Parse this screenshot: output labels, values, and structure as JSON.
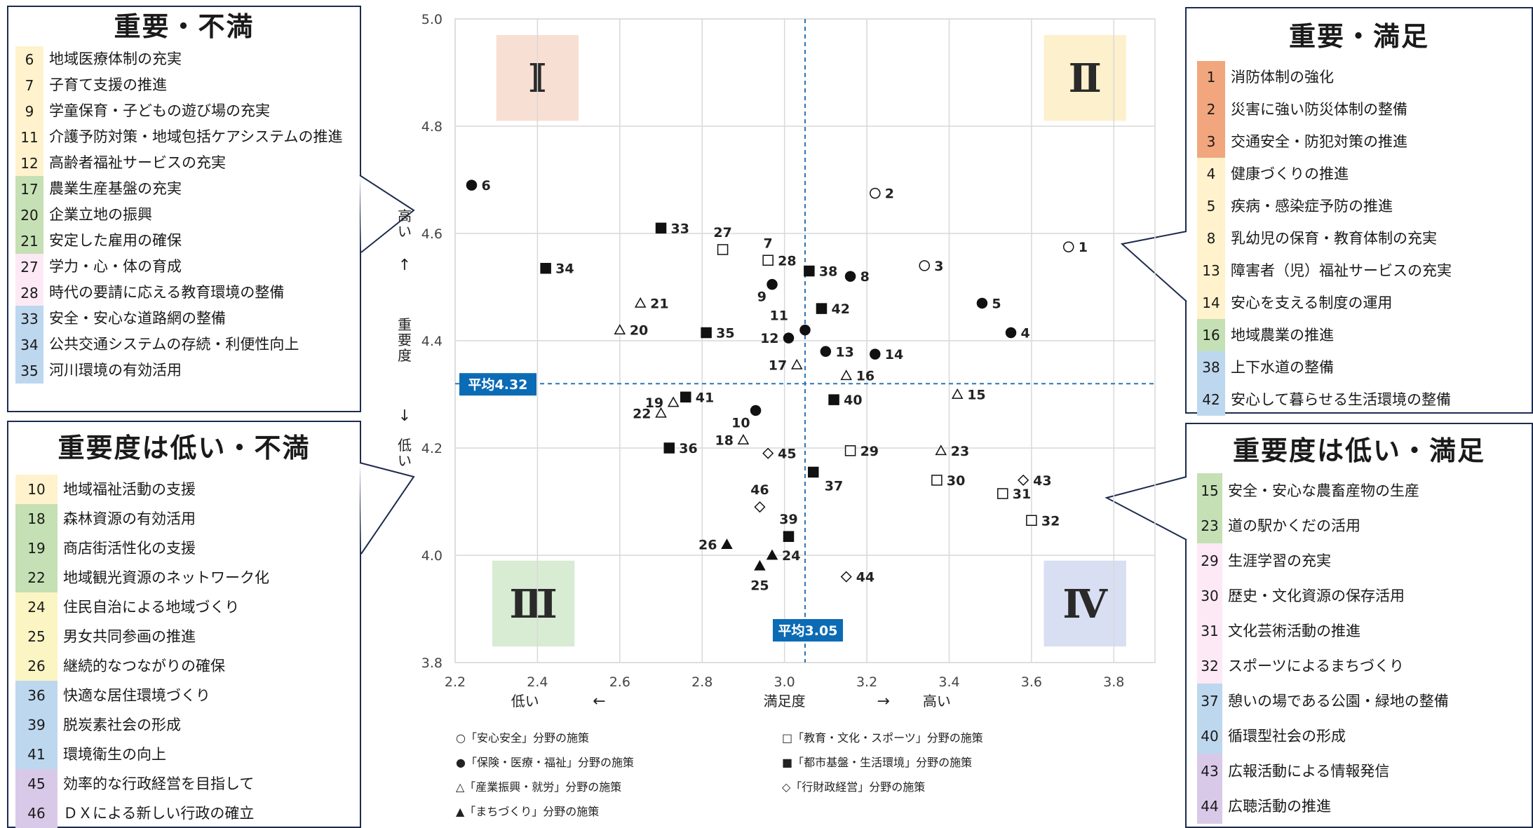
{
  "colors": {
    "q1": "#f8dfd3",
    "q2": "#fdf0cc",
    "q3": "#d8ebd3",
    "q4": "#d8dff2",
    "axis_line": "#2e75b6",
    "avg_box": "#0b6bb5",
    "panel_border": "#1d2b4f",
    "cat_safety_strong": "#f1a67d",
    "cat_health": "#fff2cc",
    "cat_industry": "#c5e0b4",
    "cat_education": "#fde9f5",
    "cat_urban": "#bdd7ee",
    "cat_admin": "#d9c9e8"
  },
  "panels": {
    "top_left": {
      "title": "重要・不満",
      "items": [
        {
          "num": "6",
          "label": "地域医療体制の充実",
          "color": "#fff2cc"
        },
        {
          "num": "7",
          "label": "子育て支援の推進",
          "color": "#fff2cc"
        },
        {
          "num": "9",
          "label": "学童保育・子どもの遊び場の充実",
          "color": "#fff2cc"
        },
        {
          "num": "11",
          "label": "介護予防対策・地域包括ケアシステムの推進",
          "color": "#fff2cc"
        },
        {
          "num": "12",
          "label": "高齢者福祉サービスの充実",
          "color": "#fff2cc"
        },
        {
          "num": "17",
          "label": "農業生産基盤の充実",
          "color": "#c5e0b4"
        },
        {
          "num": "20",
          "label": "企業立地の振興",
          "color": "#c5e0b4"
        },
        {
          "num": "21",
          "label": "安定した雇用の確保",
          "color": "#c5e0b4"
        },
        {
          "num": "27",
          "label": "学力・心・体の育成",
          "color": "#fde9f5"
        },
        {
          "num": "28",
          "label": "時代の要請に応える教育環境の整備",
          "color": "#fde9f5"
        },
        {
          "num": "33",
          "label": "安全・安心な道路網の整備",
          "color": "#bdd7ee"
        },
        {
          "num": "34",
          "label": "公共交通システムの存続・利便性向上",
          "color": "#bdd7ee"
        },
        {
          "num": "35",
          "label": "河川環境の有効活用",
          "color": "#bdd7ee"
        }
      ]
    },
    "bottom_left": {
      "title": "重要度は低い・不満",
      "items": [
        {
          "num": "10",
          "label": "地域福祉活動の支援",
          "color": "#fff2cc"
        },
        {
          "num": "18",
          "label": "森林資源の有効活用",
          "color": "#c5e0b4"
        },
        {
          "num": "19",
          "label": "商店街活性化の支援",
          "color": "#c5e0b4"
        },
        {
          "num": "22",
          "label": "地域観光資源のネットワーク化",
          "color": "#c5e0b4"
        },
        {
          "num": "24",
          "label": "住民自治による地域づくり",
          "color": "#fbf5c4"
        },
        {
          "num": "25",
          "label": "男女共同参画の推進",
          "color": "#fbf5c4"
        },
        {
          "num": "26",
          "label": "継続的なつながりの確保",
          "color": "#fbf5c4"
        },
        {
          "num": "36",
          "label": "快適な居住環境づくり",
          "color": "#bdd7ee"
        },
        {
          "num": "39",
          "label": "脱炭素社会の形成",
          "color": "#bdd7ee"
        },
        {
          "num": "41",
          "label": "環境衛生の向上",
          "color": "#bdd7ee"
        },
        {
          "num": "45",
          "label": "効率的な行政経営を目指して",
          "color": "#d9c9e8"
        },
        {
          "num": "46",
          "label": "ＤＸによる新しい行政の確立",
          "color": "#d9c9e8"
        }
      ]
    },
    "top_right": {
      "title": "重要・満足",
      "items": [
        {
          "num": "1",
          "label": "消防体制の強化",
          "color": "#f1a67d"
        },
        {
          "num": "2",
          "label": "災害に強い防災体制の整備",
          "color": "#f1a67d"
        },
        {
          "num": "3",
          "label": "交通安全・防犯対策の推進",
          "color": "#f1a67d"
        },
        {
          "num": "4",
          "label": "健康づくりの推進",
          "color": "#fff2cc"
        },
        {
          "num": "5",
          "label": "疾病・感染症予防の推進",
          "color": "#fff2cc"
        },
        {
          "num": "8",
          "label": "乳幼児の保育・教育体制の充実",
          "color": "#fff2cc"
        },
        {
          "num": "13",
          "label": "障害者（児）福祉サービスの充実",
          "color": "#fff2cc"
        },
        {
          "num": "14",
          "label": "安心を支える制度の運用",
          "color": "#fff2cc"
        },
        {
          "num": "16",
          "label": "地域農業の推進",
          "color": "#c5e0b4"
        },
        {
          "num": "38",
          "label": "上下水道の整備",
          "color": "#bdd7ee"
        },
        {
          "num": "42",
          "label": "安心して暮らせる生活環境の整備",
          "color": "#bdd7ee"
        }
      ]
    },
    "bottom_right": {
      "title": "重要度は低い・満足",
      "items": [
        {
          "num": "15",
          "label": "安全・安心な農畜産物の生産",
          "color": "#c5e0b4"
        },
        {
          "num": "23",
          "label": "道の駅かくだの活用",
          "color": "#c5e0b4"
        },
        {
          "num": "29",
          "label": "生涯学習の充実",
          "color": "#fde9f5"
        },
        {
          "num": "30",
          "label": "歴史・文化資源の保存活用",
          "color": "#fde9f5"
        },
        {
          "num": "31",
          "label": "文化芸術活動の推進",
          "color": "#fde9f5"
        },
        {
          "num": "32",
          "label": "スポーツによるまちづくり",
          "color": "#fde9f5"
        },
        {
          "num": "37",
          "label": "憩いの場である公園・緑地の整備",
          "color": "#bdd7ee"
        },
        {
          "num": "40",
          "label": "循環型社会の形成",
          "color": "#bdd7ee"
        },
        {
          "num": "43",
          "label": "広報活動による情報発信",
          "color": "#d9c9e8"
        },
        {
          "num": "44",
          "label": "広聴活動の推進",
          "color": "#d9c9e8"
        }
      ]
    }
  },
  "chart_data": {
    "type": "scatter",
    "xlim": [
      2.2,
      3.9
    ],
    "ylim": [
      3.8,
      5.0
    ],
    "xticks": [
      "2.2",
      "2.4",
      "2.6",
      "2.8",
      "3.0",
      "3.2",
      "3.4",
      "3.6",
      "3.8"
    ],
    "yticks": [
      "3.8",
      "4.0",
      "4.2",
      "4.4",
      "4.6",
      "4.8",
      "5.0"
    ],
    "xlabel": "満足度",
    "xlabel_low": "低い",
    "xlabel_high": "高い",
    "xarrow_left": "←",
    "xarrow_right": "→",
    "ylabel": "重要度",
    "ylabel_high": "高い",
    "ylabel_low": "低い",
    "yarrow_up": "↑",
    "yarrow_down": "↓",
    "grid": true,
    "avg_x": 3.05,
    "avg_y": 4.32,
    "avg_x_label": "平均3.05",
    "avg_y_label": "平均4.32",
    "quadrants": [
      "Ⅰ",
      "Ⅱ",
      "Ⅲ",
      "Ⅳ"
    ],
    "legend": [
      {
        "marker": "circle-open",
        "text": "○「安心安全」分野の施策"
      },
      {
        "marker": "square-open",
        "text": "□「教育・文化・スポーツ」分野の施策"
      },
      {
        "marker": "circle-filled",
        "text": "●「保険・医療・福祉」分野の施策"
      },
      {
        "marker": "square-filled",
        "text": "■「都市基盤・生活環境」分野の施策"
      },
      {
        "marker": "triangle-open",
        "text": "△「産業振興・就労」分野の施策"
      },
      {
        "marker": "diamond-open",
        "text": "◇「行財政経営」分野の施策"
      },
      {
        "marker": "triangle-filled",
        "text": "▲「まちづくり」分野の施策"
      }
    ],
    "points": [
      {
        "id": "1",
        "x": 3.69,
        "y": 4.575,
        "m": "circle-open",
        "lp": "right"
      },
      {
        "id": "2",
        "x": 3.22,
        "y": 4.675,
        "m": "circle-open",
        "lp": "right"
      },
      {
        "id": "3",
        "x": 3.34,
        "y": 4.54,
        "m": "circle-open",
        "lp": "right"
      },
      {
        "id": "4",
        "x": 3.55,
        "y": 4.415,
        "m": "circle-filled",
        "lp": "right"
      },
      {
        "id": "5",
        "x": 3.48,
        "y": 4.47,
        "m": "circle-filled",
        "lp": "right"
      },
      {
        "id": "6",
        "x": 2.24,
        "y": 4.69,
        "m": "circle-filled",
        "lp": "right"
      },
      {
        "id": "7",
        "x": 2.96,
        "y": 4.55,
        "m": "circle-open",
        "lp": "above"
      },
      {
        "id": "8",
        "x": 3.16,
        "y": 4.52,
        "m": "circle-filled",
        "lp": "right"
      },
      {
        "id": "9",
        "x": 2.97,
        "y": 4.505,
        "m": "circle-filled",
        "lp": "below-left"
      },
      {
        "id": "10",
        "x": 2.93,
        "y": 4.27,
        "m": "circle-filled",
        "lp": "below-left"
      },
      {
        "id": "11",
        "x": 3.05,
        "y": 4.42,
        "m": "circle-filled",
        "lp": "above-left"
      },
      {
        "id": "12",
        "x": 3.01,
        "y": 4.405,
        "m": "circle-filled",
        "lp": "left"
      },
      {
        "id": "13",
        "x": 3.1,
        "y": 4.38,
        "m": "circle-filled",
        "lp": "right"
      },
      {
        "id": "14",
        "x": 3.22,
        "y": 4.375,
        "m": "circle-filled",
        "lp": "right"
      },
      {
        "id": "15",
        "x": 3.42,
        "y": 4.3,
        "m": "triangle-open",
        "lp": "right"
      },
      {
        "id": "16",
        "x": 3.15,
        "y": 4.335,
        "m": "triangle-open",
        "lp": "right"
      },
      {
        "id": "17",
        "x": 3.03,
        "y": 4.355,
        "m": "triangle-open",
        "lp": "left"
      },
      {
        "id": "18",
        "x": 2.9,
        "y": 4.215,
        "m": "triangle-open",
        "lp": "left"
      },
      {
        "id": "19",
        "x": 2.73,
        "y": 4.285,
        "m": "triangle-open",
        "lp": "left"
      },
      {
        "id": "20",
        "x": 2.6,
        "y": 4.42,
        "m": "triangle-open",
        "lp": "right"
      },
      {
        "id": "21",
        "x": 2.65,
        "y": 4.47,
        "m": "triangle-open",
        "lp": "right"
      },
      {
        "id": "22",
        "x": 2.7,
        "y": 4.265,
        "m": "triangle-open",
        "lp": "left"
      },
      {
        "id": "23",
        "x": 3.38,
        "y": 4.195,
        "m": "triangle-open",
        "lp": "right"
      },
      {
        "id": "24",
        "x": 2.97,
        "y": 4.0,
        "m": "triangle-filled",
        "lp": "right"
      },
      {
        "id": "25",
        "x": 2.94,
        "y": 3.98,
        "m": "triangle-filled",
        "lp": "below"
      },
      {
        "id": "26",
        "x": 2.86,
        "y": 4.02,
        "m": "triangle-filled",
        "lp": "left"
      },
      {
        "id": "27",
        "x": 2.85,
        "y": 4.57,
        "m": "square-open",
        "lp": "above"
      },
      {
        "id": "28",
        "x": 2.96,
        "y": 4.55,
        "m": "square-open",
        "lp": "right"
      },
      {
        "id": "29",
        "x": 3.16,
        "y": 4.195,
        "m": "square-open",
        "lp": "right"
      },
      {
        "id": "30",
        "x": 3.37,
        "y": 4.14,
        "m": "square-open",
        "lp": "right"
      },
      {
        "id": "31",
        "x": 3.53,
        "y": 4.115,
        "m": "square-open",
        "lp": "right"
      },
      {
        "id": "32",
        "x": 3.6,
        "y": 4.065,
        "m": "square-open",
        "lp": "right"
      },
      {
        "id": "33",
        "x": 2.7,
        "y": 4.61,
        "m": "square-filled",
        "lp": "right"
      },
      {
        "id": "34",
        "x": 2.42,
        "y": 4.535,
        "m": "square-filled",
        "lp": "right"
      },
      {
        "id": "35",
        "x": 2.81,
        "y": 4.415,
        "m": "square-filled",
        "lp": "right"
      },
      {
        "id": "36",
        "x": 2.72,
        "y": 4.2,
        "m": "square-filled",
        "lp": "right"
      },
      {
        "id": "37",
        "x": 3.07,
        "y": 4.155,
        "m": "square-filled",
        "lp": "below-right"
      },
      {
        "id": "38",
        "x": 3.06,
        "y": 4.53,
        "m": "square-filled",
        "lp": "right"
      },
      {
        "id": "39",
        "x": 3.01,
        "y": 4.035,
        "m": "square-filled",
        "lp": "above"
      },
      {
        "id": "40",
        "x": 3.12,
        "y": 4.29,
        "m": "square-filled",
        "lp": "right"
      },
      {
        "id": "41",
        "x": 2.76,
        "y": 4.295,
        "m": "square-filled",
        "lp": "right"
      },
      {
        "id": "42",
        "x": 3.09,
        "y": 4.46,
        "m": "square-filled",
        "lp": "right"
      },
      {
        "id": "43",
        "x": 3.58,
        "y": 4.14,
        "m": "diamond-open",
        "lp": "right"
      },
      {
        "id": "44",
        "x": 3.15,
        "y": 3.96,
        "m": "diamond-open",
        "lp": "right"
      },
      {
        "id": "45",
        "x": 2.96,
        "y": 4.19,
        "m": "diamond-open",
        "lp": "right"
      },
      {
        "id": "46",
        "x": 2.94,
        "y": 4.09,
        "m": "diamond-open",
        "lp": "above"
      }
    ]
  }
}
